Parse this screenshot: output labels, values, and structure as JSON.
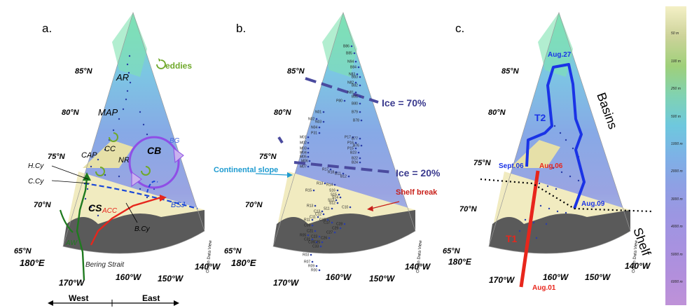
{
  "panels": [
    {
      "letter": "a.",
      "lat_labels": [
        "85°N",
        "80°N",
        "75°N",
        "70°N",
        "65°N"
      ],
      "lon_labels": [
        "180°E",
        "170°W",
        "160°W",
        "150°W",
        "140°W"
      ],
      "odv_credit": "Ocean Data View",
      "regions": [
        "AR",
        "MAP",
        "CAP",
        "CC",
        "NR",
        "CB",
        "CS"
      ],
      "legend_eddies": "eddies",
      "currents": [
        "BG",
        "BSJ",
        "ACC",
        "H.Cy",
        "C.Cy",
        "B.Cy",
        "AW"
      ],
      "strait": "Bering Strait"
    },
    {
      "letter": "b.",
      "lat_labels": [
        "85°N",
        "80°N",
        "75°N",
        "70°N",
        "65°N"
      ],
      "lon_labels": [
        "180°E",
        "170°W",
        "160°W",
        "150°W",
        "140°W"
      ],
      "odv_credit": "Ocean Data View",
      "ice_labels": [
        "Ice = 70%",
        "Ice = 20%"
      ],
      "continental_slope": "Continental slope",
      "shelf_break": "Shelf break",
      "stations": [
        "B86",
        "B85",
        "N94",
        "B84",
        "N83",
        "B83",
        "N82",
        "B82",
        "N81",
        "B81",
        "P80",
        "B80",
        "N01",
        "N02",
        "N03",
        "N04",
        "P31",
        "B79",
        "B78",
        "M01",
        "M02",
        "M03",
        "M04",
        "M05",
        "M06",
        "M07",
        "P17",
        "P16",
        "P15",
        "B77",
        "B76",
        "B23",
        "B22",
        "R17",
        "R18",
        "B11",
        "B12",
        "R13",
        "R14",
        "B24",
        "R15",
        "S16",
        "S15",
        "S14",
        "S13",
        "S12",
        "S11",
        "R13",
        "C13",
        "C11",
        "R11",
        "C12",
        "C15",
        "C17",
        "C10",
        "C09",
        "C21",
        "C23",
        "C25",
        "C26",
        "C27",
        "C29",
        "C28",
        "R05",
        "C31",
        "C35",
        "C33",
        "R03",
        "R07",
        "R09",
        "R00"
      ]
    },
    {
      "letter": "c.",
      "lat_labels": [
        "85°N",
        "80°N",
        "75°N",
        "70°N",
        "65°N"
      ],
      "lon_labels": [
        "180°E",
        "170°W",
        "160°W",
        "150°W",
        "140°W"
      ],
      "odv_credit": "Ocean Data View",
      "transects": [
        "T1",
        "T2"
      ],
      "dates": [
        "Aug.27",
        "Sept.06",
        "Aug.06",
        "Aug.09",
        "Aug.01"
      ],
      "regions": [
        "Basins",
        "Shelf"
      ]
    }
  ],
  "colorbar": {
    "ticks": [
      "50 m",
      "100 m",
      "250 m",
      "500 m",
      "1000 m",
      "2000 m",
      "3000 m",
      "4000 m",
      "5000 m",
      "6000 m"
    ]
  },
  "axis_bottom": {
    "west": "West",
    "east": "East"
  },
  "colors": {
    "ocean_deep": "#8aa8e6",
    "shelf": "#f1ebc0",
    "land": "#5a5a5a",
    "ice": "#4a4a9e",
    "t1": "#e8261c",
    "t2": "#1a33e6",
    "aw": "#1f7a1f",
    "eddy": "#6fa82a"
  }
}
